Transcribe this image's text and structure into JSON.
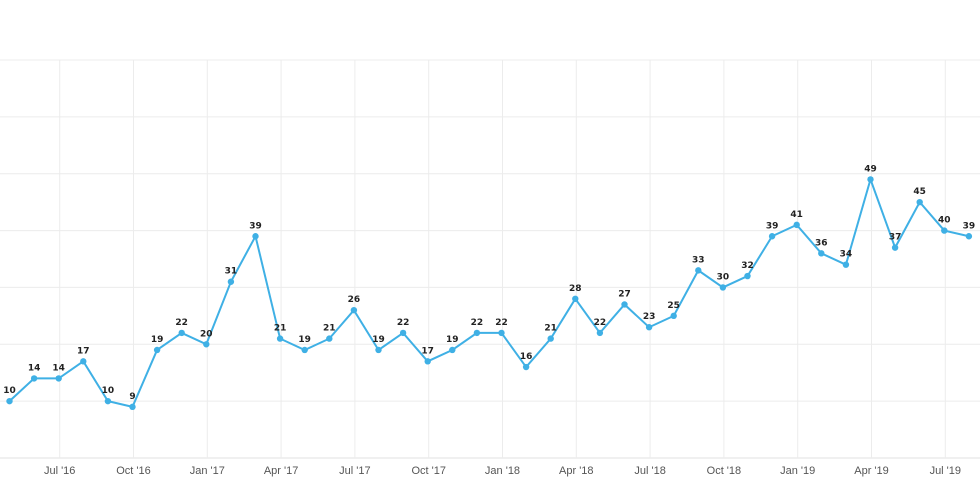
{
  "colors": {
    "series": "#3fb0e5",
    "grid": "#ececec",
    "label": "#222222",
    "tick": "#555555"
  },
  "chart_data": {
    "type": "line",
    "title": "",
    "xlabel": "",
    "ylabel": "",
    "ylim": [
      0,
      70
    ],
    "y_grid_step": 10,
    "grid": true,
    "legend": "none",
    "x_tick_labels": [
      "Jul '16",
      "Oct '16",
      "Jan '17",
      "Apr '17",
      "Jul '17",
      "Oct '17",
      "Jan '18",
      "Apr '18",
      "Jul '18",
      "Oct '18",
      "Jan '19",
      "Apr '19",
      "Jul '19"
    ],
    "x": [
      "May '16",
      "Jun '16",
      "Jul '16",
      "Aug '16",
      "Sep '16",
      "Oct '16",
      "Nov '16",
      "Dec '16",
      "Jan '17",
      "Feb '17",
      "Mar '17",
      "Apr '17",
      "May '17",
      "Jun '17",
      "Jul '17",
      "Aug '17",
      "Sep '17",
      "Oct '17",
      "Nov '17",
      "Dec '17",
      "Jan '18",
      "Feb '18",
      "Mar '18",
      "Apr '18",
      "May '18",
      "Jun '18",
      "Jul '18",
      "Aug '18",
      "Sep '18",
      "Oct '18",
      "Nov '18",
      "Dec '18",
      "Jan '19",
      "Feb '19",
      "Mar '19",
      "Apr '19",
      "May '19",
      "Jun '19",
      "Jul '19",
      "Aug '19"
    ],
    "series": [
      {
        "values": [
          10,
          14,
          14,
          17,
          10,
          9,
          19,
          22,
          20,
          31,
          39,
          21,
          19,
          21,
          26,
          19,
          22,
          17,
          19,
          22,
          22,
          16,
          21,
          28,
          22,
          27,
          23,
          25,
          33,
          30,
          32,
          39,
          41,
          36,
          34,
          49,
          37,
          45,
          40,
          39
        ]
      }
    ]
  }
}
